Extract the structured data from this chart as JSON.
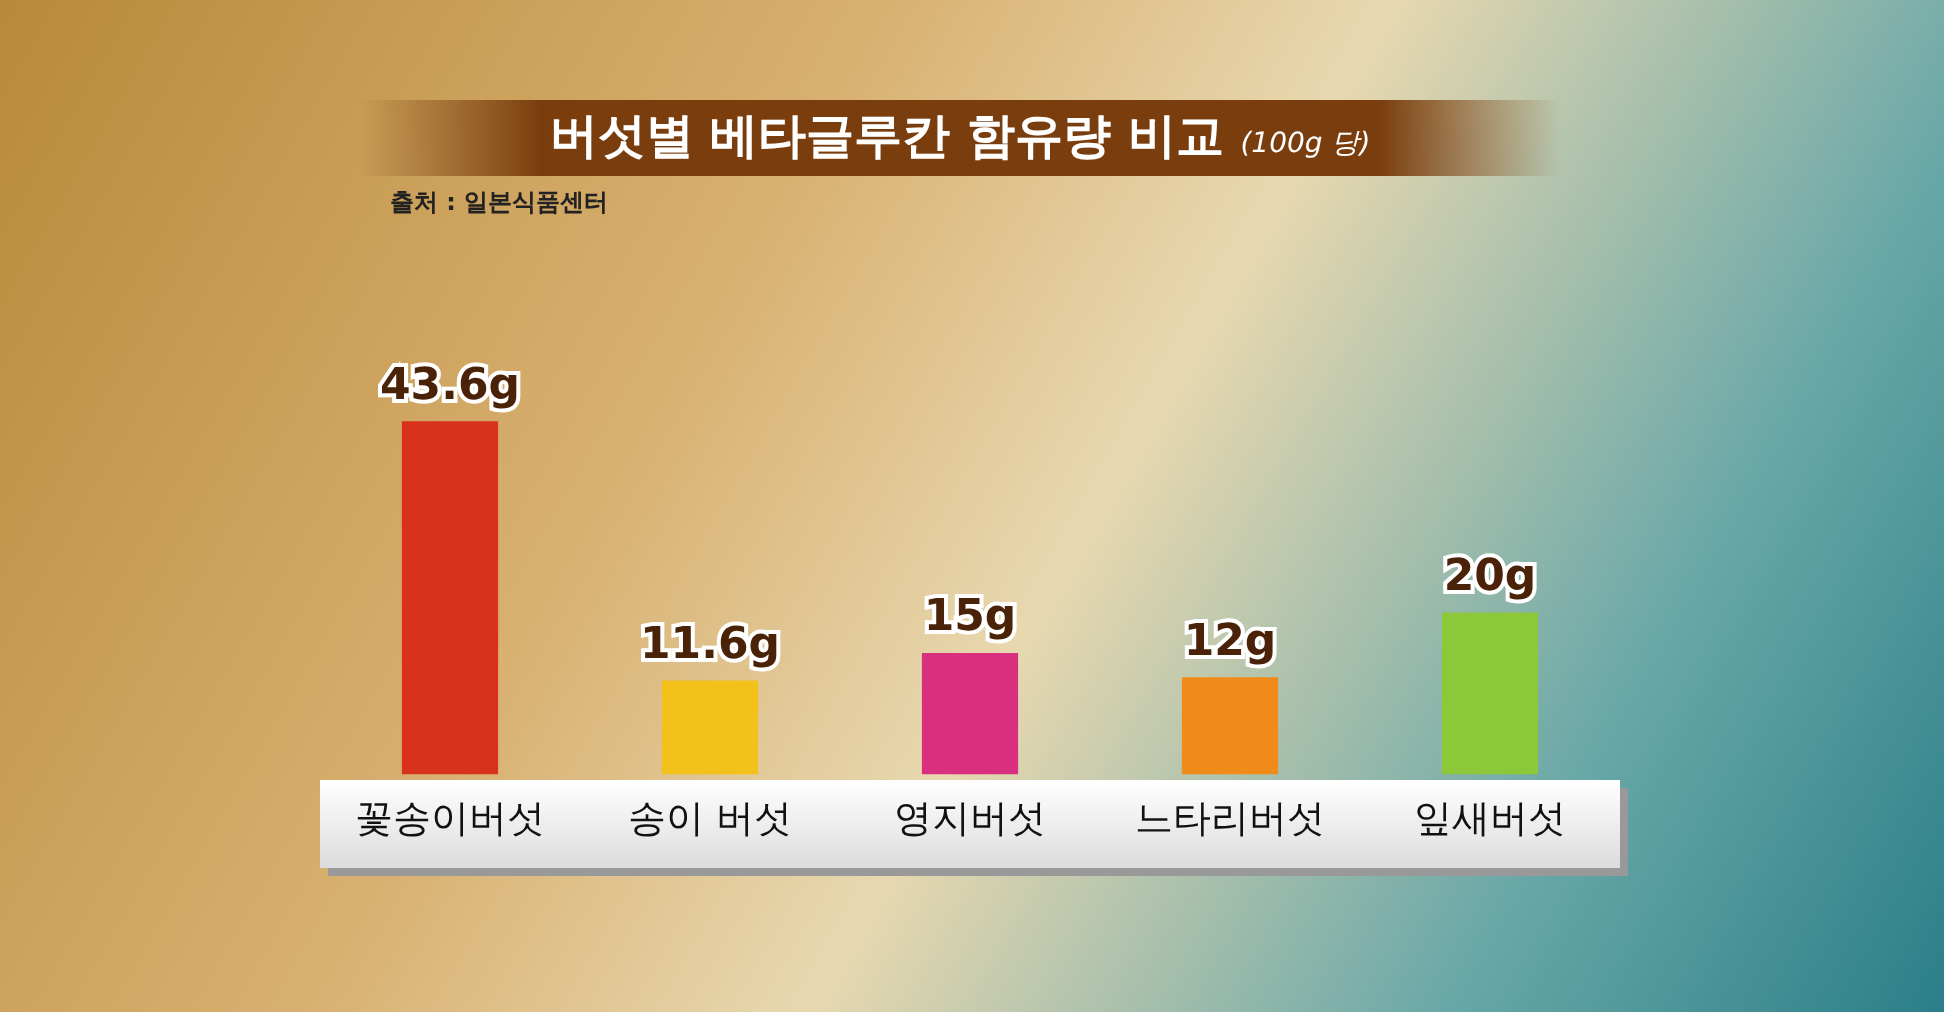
{
  "chart_data": {
    "type": "bar",
    "title": "버섯별 베타글루칸 함유량 비교",
    "subtitle": "(100g 당)",
    "annotations": [
      "출처 : 일본식품센터"
    ],
    "categories": [
      "꽃송이버섯",
      "송이 버섯",
      "영지버섯",
      "느타리버섯",
      "잎새버섯"
    ],
    "values": [
      43.6,
      11.6,
      15,
      12,
      20
    ],
    "value_labels": [
      "43.6g",
      "11.6g",
      "15g",
      "12g",
      "20g"
    ],
    "colors": [
      "#d8321c",
      "#f2c21a",
      "#d8307e",
      "#f08a18",
      "#8cc83a"
    ],
    "grid": false,
    "legend": false
  }
}
